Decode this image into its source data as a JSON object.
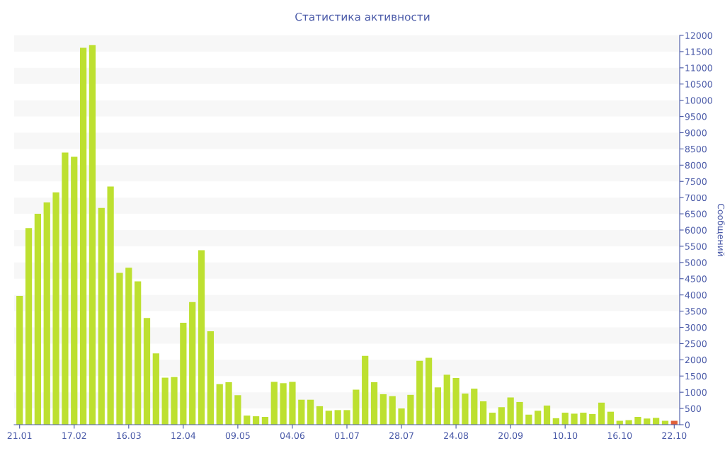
{
  "chart_data": {
    "type": "bar",
    "title": "Статистика активности",
    "ylabel": "Сообщений",
    "categories": [
      "21.01",
      null,
      null,
      null,
      null,
      null,
      "17.02",
      null,
      null,
      null,
      null,
      null,
      "16.03",
      null,
      null,
      null,
      null,
      null,
      "12.04",
      null,
      null,
      null,
      null,
      null,
      "09.05",
      null,
      null,
      null,
      null,
      null,
      "04.06",
      null,
      null,
      null,
      null,
      null,
      "01.07",
      null,
      null,
      null,
      null,
      null,
      "28.07",
      null,
      null,
      null,
      null,
      null,
      "24.08",
      null,
      null,
      null,
      null,
      null,
      "20.09",
      null,
      null,
      null,
      null,
      null,
      "10.10",
      null,
      null,
      null,
      null,
      null,
      "16.10",
      null,
      null,
      null,
      null,
      null,
      "22.10"
    ],
    "values": [
      3970,
      6060,
      6500,
      6850,
      7160,
      8390,
      8260,
      11620,
      11700,
      6680,
      7340,
      4680,
      4840,
      4420,
      3290,
      2200,
      1450,
      1470,
      3140,
      3780,
      5380,
      2880,
      1250,
      1310,
      910,
      280,
      260,
      240,
      1320,
      1280,
      1320,
      770,
      770,
      570,
      430,
      450,
      450,
      1080,
      2120,
      1310,
      940,
      880,
      500,
      920,
      1970,
      2060,
      1150,
      1540,
      1440,
      960,
      1110,
      720,
      370,
      540,
      840,
      700,
      310,
      430,
      590,
      200,
      370,
      340,
      370,
      330,
      680,
      400,
      120,
      140,
      240,
      190,
      210,
      120,
      120
    ],
    "colors": [
      "#bde030",
      "#bde030",
      "#bde030",
      "#bde030",
      "#bde030",
      "#bde030",
      "#bde030",
      "#bde030",
      "#bde030",
      "#bde030",
      "#bde030",
      "#bde030",
      "#bde030",
      "#bde030",
      "#bde030",
      "#bde030",
      "#bde030",
      "#bde030",
      "#bde030",
      "#bde030",
      "#bde030",
      "#bde030",
      "#bde030",
      "#bde030",
      "#bde030",
      "#bde030",
      "#bde030",
      "#bde030",
      "#bde030",
      "#bde030",
      "#bde030",
      "#bde030",
      "#bde030",
      "#bde030",
      "#bde030",
      "#bde030",
      "#bde030",
      "#bde030",
      "#bde030",
      "#bde030",
      "#bde030",
      "#bde030",
      "#bde030",
      "#bde030",
      "#bde030",
      "#bde030",
      "#bde030",
      "#bde030",
      "#bde030",
      "#bde030",
      "#bde030",
      "#bde030",
      "#bde030",
      "#bde030",
      "#bde030",
      "#bde030",
      "#bde030",
      "#bde030",
      "#bde030",
      "#bde030",
      "#bde030",
      "#bde030",
      "#bde030",
      "#bde030",
      "#bde030",
      "#bde030",
      "#bde030",
      "#bde030",
      "#bde030",
      "#bde030",
      "#bde030",
      "#bde030",
      "#e0603a"
    ],
    "ylim": [
      0,
      12000
    ],
    "yticks": [
      0,
      500,
      1000,
      1500,
      2000,
      2500,
      3000,
      3500,
      4000,
      4500,
      5000,
      5500,
      6000,
      6500,
      7000,
      7500,
      8000,
      8500,
      9000,
      9500,
      10000,
      10500,
      11000,
      11500,
      12000
    ],
    "bands": [
      {
        "axis": "y",
        "from": 500,
        "to": 1000,
        "color": "#f7f7f7"
      },
      {
        "axis": "y",
        "from": 1500,
        "to": 2000,
        "color": "#f7f7f7"
      },
      {
        "axis": "y",
        "from": 2500,
        "to": 3000,
        "color": "#f7f7f7"
      },
      {
        "axis": "y",
        "from": 3500,
        "to": 4000,
        "color": "#f7f7f7"
      },
      {
        "axis": "y",
        "from": 4500,
        "to": 5000,
        "color": "#f7f7f7"
      },
      {
        "axis": "y",
        "from": 5500,
        "to": 6000,
        "color": "#f7f7f7"
      },
      {
        "axis": "y",
        "from": 6500,
        "to": 7000,
        "color": "#f7f7f7"
      },
      {
        "axis": "y",
        "from": 7500,
        "to": 8000,
        "color": "#f7f7f7"
      },
      {
        "axis": "y",
        "from": 8500,
        "to": 9000,
        "color": "#f7f7f7"
      },
      {
        "axis": "y",
        "from": 9500,
        "to": 10000,
        "color": "#f7f7f7"
      },
      {
        "axis": "y",
        "from": 10500,
        "to": 11000,
        "color": "#f7f7f7"
      },
      {
        "axis": "y",
        "from": 11500,
        "to": 12000,
        "color": "#f7f7f7"
      }
    ]
  }
}
